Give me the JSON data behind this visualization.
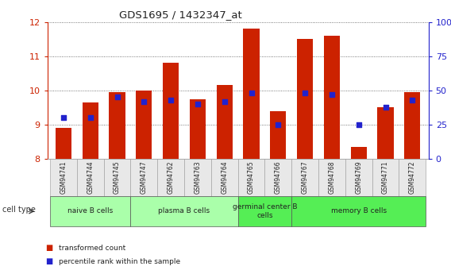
{
  "title": "GDS1695 / 1432347_at",
  "samples": [
    "GSM94741",
    "GSM94744",
    "GSM94745",
    "GSM94747",
    "GSM94762",
    "GSM94763",
    "GSM94764",
    "GSM94765",
    "GSM94766",
    "GSM94767",
    "GSM94768",
    "GSM94769",
    "GSM94771",
    "GSM94772"
  ],
  "transformed_count": [
    8.9,
    9.65,
    9.95,
    10.0,
    10.8,
    9.75,
    10.15,
    11.8,
    9.4,
    11.5,
    11.6,
    8.35,
    9.5,
    9.95
  ],
  "percentile_rank": [
    30,
    30,
    45,
    42,
    43,
    40,
    42,
    48,
    25,
    48,
    47,
    25,
    38,
    43
  ],
  "y_min": 8.0,
  "y_max": 12.0,
  "yticks": [
    8,
    9,
    10,
    11,
    12
  ],
  "y2ticks": [
    0,
    25,
    50,
    75,
    100
  ],
  "y2labels": [
    "0",
    "25",
    "50",
    "75",
    "100%"
  ],
  "bar_color": "#cc2200",
  "dot_color": "#2222cc",
  "groups": [
    {
      "label": "naive B cells",
      "start": 0,
      "end": 3,
      "color": "#aaffaa"
    },
    {
      "label": "plasma B cells",
      "start": 3,
      "end": 7,
      "color": "#aaffaa"
    },
    {
      "label": "germinal center B\ncells",
      "start": 7,
      "end": 9,
      "color": "#55ee55"
    },
    {
      "label": "memory B cells",
      "start": 9,
      "end": 14,
      "color": "#55ee55"
    }
  ],
  "cell_type_label": "cell type",
  "legend_labels": [
    "transformed count",
    "percentile rank within the sample"
  ],
  "legend_colors": [
    "#cc2200",
    "#2222cc"
  ]
}
